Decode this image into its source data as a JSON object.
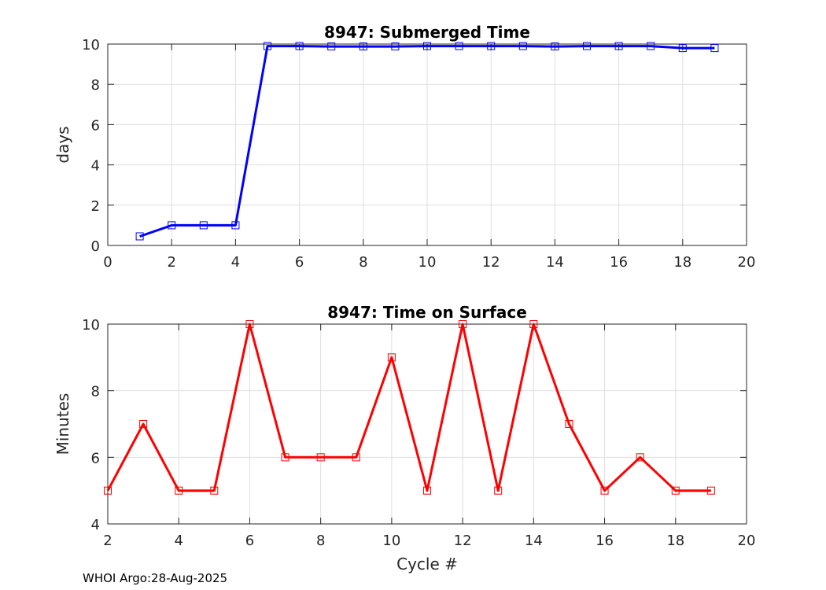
{
  "footer": "WHOI Argo:28-Aug-2025",
  "chart_data": [
    {
      "type": "line",
      "title": "8947: Submerged Time",
      "xlabel": "",
      "ylabel": "days",
      "xlim": [
        0,
        20
      ],
      "ylim": [
        0,
        10
      ],
      "xticks": [
        0,
        2,
        4,
        6,
        8,
        10,
        12,
        14,
        16,
        18,
        20
      ],
      "yticks": [
        0,
        2,
        4,
        6,
        8,
        10
      ],
      "grid": true,
      "color": "#0000ff",
      "marker": "square",
      "x": [
        1,
        2,
        3,
        4,
        5,
        6,
        7,
        8,
        9,
        10,
        11,
        12,
        13,
        14,
        15,
        16,
        17,
        18,
        19
      ],
      "y": [
        0.45,
        1.0,
        1.0,
        1.0,
        9.9,
        9.9,
        9.88,
        9.88,
        9.88,
        9.9,
        9.9,
        9.9,
        9.9,
        9.88,
        9.9,
        9.9,
        9.9,
        9.8,
        9.8
      ]
    },
    {
      "type": "line",
      "title": "8947: Time on Surface",
      "xlabel": "Cycle #",
      "ylabel": "Minutes",
      "xlim": [
        2,
        20
      ],
      "ylim": [
        4,
        10
      ],
      "xticks": [
        2,
        4,
        6,
        8,
        10,
        12,
        14,
        16,
        18,
        20
      ],
      "yticks": [
        4,
        6,
        8,
        10
      ],
      "grid": true,
      "color": "#ff0000",
      "marker": "square",
      "x": [
        2,
        3,
        4,
        5,
        6,
        7,
        8,
        9,
        10,
        11,
        12,
        13,
        14,
        15,
        16,
        17,
        18,
        19
      ],
      "y": [
        5,
        7,
        5,
        5,
        10,
        6,
        6,
        6,
        9,
        5,
        10,
        5,
        10,
        7,
        5,
        6,
        5,
        5
      ]
    }
  ]
}
